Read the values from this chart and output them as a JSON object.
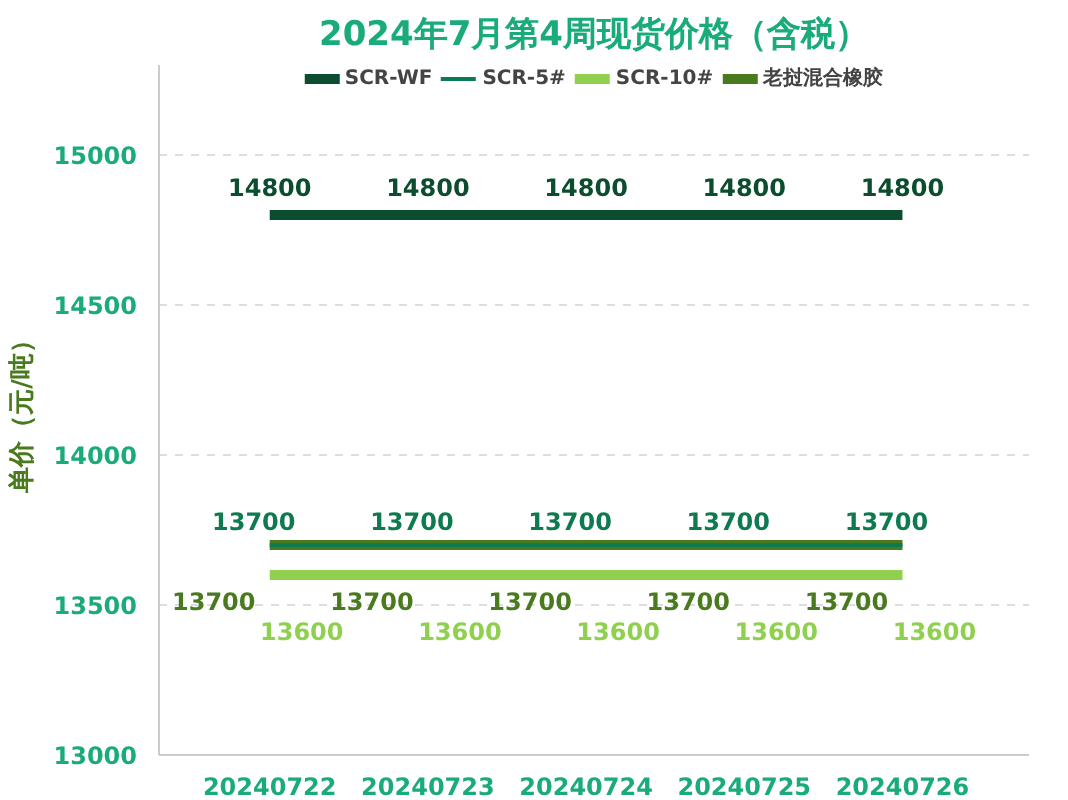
{
  "chart_data": {
    "type": "line",
    "title": "2024年7月第4周现货价格（含税）",
    "ylabel": "单价（元/吨）",
    "categories": [
      "20240722",
      "20240723",
      "20240724",
      "20240725",
      "20240726"
    ],
    "series": [
      {
        "name": "SCR-WF",
        "color": "#0b4d2e",
        "values": [
          14800,
          14800,
          14800,
          14800,
          14800
        ]
      },
      {
        "name": "SCR-5#",
        "color": "#0e7a4f",
        "values": [
          13700,
          13700,
          13700,
          13700,
          13700
        ]
      },
      {
        "name": "SCR-10#",
        "color": "#8fd14f",
        "values": [
          13600,
          13600,
          13600,
          13600,
          13600
        ]
      },
      {
        "name": "老挝混合橡胶",
        "color": "#4a7a1e",
        "values": [
          13700,
          13700,
          13700,
          13700,
          13700
        ]
      }
    ],
    "ylim": [
      13000,
      15300
    ],
    "yticks": [
      13000,
      13500,
      14000,
      14500,
      15000
    ],
    "grid": "y",
    "legend": "top",
    "data_labels": true
  }
}
